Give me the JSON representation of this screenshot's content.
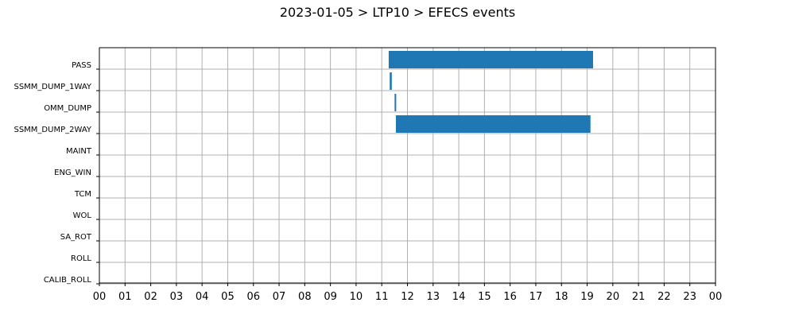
{
  "chart_data": {
    "type": "bar",
    "orientation": "horizontal-timeline",
    "title": "2023-01-05 > LTP10 > EFECS events",
    "xlabel": "",
    "ylabel": "",
    "xlim": [
      0,
      24
    ],
    "x_tick_labels": [
      "00",
      "01",
      "02",
      "03",
      "04",
      "05",
      "06",
      "07",
      "08",
      "09",
      "10",
      "11",
      "12",
      "13",
      "14",
      "15",
      "16",
      "17",
      "18",
      "19",
      "20",
      "21",
      "22",
      "23",
      "00"
    ],
    "categories": [
      "PASS",
      "SSMM_DUMP_1WAY",
      "OMM_DUMP",
      "SSMM_DUMP_2WAY",
      "MAINT",
      "ENG_WIN",
      "TCM",
      "WOL",
      "SA_ROT",
      "ROLL",
      "CALIB_ROLL"
    ],
    "series": [
      {
        "color": "#1f77b4",
        "events": [
          {
            "category": "PASS",
            "start": 11.27,
            "end": 19.23
          },
          {
            "category": "SSMM_DUMP_1WAY",
            "start": 11.31,
            "end": 11.39
          },
          {
            "category": "OMM_DUMP",
            "start": 11.5,
            "end": 11.56
          },
          {
            "category": "SSMM_DUMP_2WAY",
            "start": 11.55,
            "end": 19.13
          }
        ]
      }
    ],
    "grid": true,
    "legend": "none"
  }
}
